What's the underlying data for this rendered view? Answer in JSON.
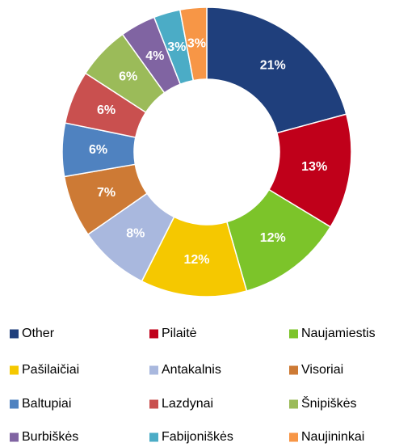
{
  "chart_data": {
    "type": "donut",
    "categories": [
      "Other",
      "Pilaitė",
      "Naujamiestis",
      "Pašilaičiai",
      "Antakalnis",
      "Visoriai",
      "Baltupiai",
      "Lazdynai",
      "Šnipiškės",
      "Burbiškės",
      "Fabijoniškės",
      "Naujininkai"
    ],
    "values": [
      21,
      13,
      12,
      12,
      8,
      7,
      6,
      6,
      6,
      4,
      3,
      3
    ],
    "value_labels": [
      "21%",
      "13%",
      "12%",
      "12%",
      "8%",
      "7%",
      "6%",
      "6%",
      "6%",
      "4%",
      "3%",
      "3%"
    ],
    "colors": [
      "#1f3f7c",
      "#c0001a",
      "#7cc42a",
      "#f5c800",
      "#a9b8de",
      "#cd7a35",
      "#4f82c0",
      "#c9504f",
      "#9bbb59",
      "#8064a2",
      "#4bacc6",
      "#f79646"
    ],
    "legend": "bottom"
  }
}
